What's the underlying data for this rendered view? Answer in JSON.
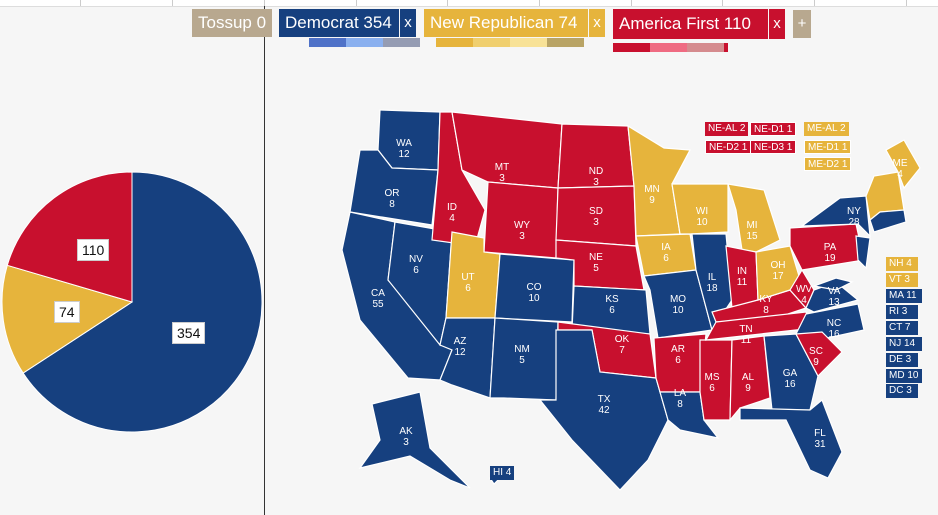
{
  "colors": {
    "dem": "#16407f",
    "rep": "#e6b43c",
    "af": "#c8102e",
    "tossup": "#b8a88f"
  },
  "header": {
    "tossup_label": "Tossup 0",
    "dem_label": "Democrat 354",
    "rep_label": "New Republican 74",
    "af_label": "America First 110",
    "remove_label": "x",
    "add_label": "+"
  },
  "pie": {
    "dem": 354,
    "rep": 74,
    "af": 110,
    "dem_label": "354",
    "rep_label": "74",
    "af_label": "110"
  },
  "states": [
    {
      "abbr": "WA",
      "ev": "12"
    },
    {
      "abbr": "OR",
      "ev": "8"
    },
    {
      "abbr": "CA",
      "ev": "55"
    },
    {
      "abbr": "NV",
      "ev": "6"
    },
    {
      "abbr": "ID",
      "ev": "4"
    },
    {
      "abbr": "MT",
      "ev": "3"
    },
    {
      "abbr": "WY",
      "ev": "3"
    },
    {
      "abbr": "UT",
      "ev": "6"
    },
    {
      "abbr": "AZ",
      "ev": "12"
    },
    {
      "abbr": "CO",
      "ev": "10"
    },
    {
      "abbr": "NM",
      "ev": "5"
    },
    {
      "abbr": "ND",
      "ev": "3"
    },
    {
      "abbr": "SD",
      "ev": "3"
    },
    {
      "abbr": "NE",
      "ev": "5"
    },
    {
      "abbr": "KS",
      "ev": "6"
    },
    {
      "abbr": "OK",
      "ev": "7"
    },
    {
      "abbr": "TX",
      "ev": "42"
    },
    {
      "abbr": "MN",
      "ev": "9"
    },
    {
      "abbr": "IA",
      "ev": "6"
    },
    {
      "abbr": "MO",
      "ev": "10"
    },
    {
      "abbr": "AR",
      "ev": "6"
    },
    {
      "abbr": "LA",
      "ev": "8"
    },
    {
      "abbr": "WI",
      "ev": "10"
    },
    {
      "abbr": "IL",
      "ev": "18"
    },
    {
      "abbr": "MS",
      "ev": "6"
    },
    {
      "abbr": "MI",
      "ev": "15"
    },
    {
      "abbr": "IN",
      "ev": "11"
    },
    {
      "abbr": "KY",
      "ev": "8"
    },
    {
      "abbr": "TN",
      "ev": "11"
    },
    {
      "abbr": "AL",
      "ev": "9"
    },
    {
      "abbr": "GA",
      "ev": "16"
    },
    {
      "abbr": "FL",
      "ev": "31"
    },
    {
      "abbr": "OH",
      "ev": "17"
    },
    {
      "abbr": "WV",
      "ev": "4"
    },
    {
      "abbr": "VA",
      "ev": "13"
    },
    {
      "abbr": "NC",
      "ev": "16"
    },
    {
      "abbr": "SC",
      "ev": "9"
    },
    {
      "abbr": "PA",
      "ev": "19"
    },
    {
      "abbr": "NY",
      "ev": "28"
    },
    {
      "abbr": "ME",
      "ev": "4"
    },
    {
      "abbr": "AK",
      "ev": "3"
    },
    {
      "abbr": "HI",
      "ev": "4"
    }
  ],
  "districts": {
    "ne_al": "NE-AL 2",
    "ne_d1": "NE-D1 1",
    "ne_d2": "NE-D2 1",
    "ne_d3": "NE-D3 1",
    "me_al": "ME-AL 2",
    "me_d1": "ME-D1 1",
    "me_d2": "ME-D2 1"
  },
  "small_states": [
    "NH 4",
    "VT 3",
    "MA 11",
    "RI 3",
    "CT 7",
    "NJ 14",
    "DE 3",
    "MD 10",
    "DC 3"
  ],
  "hi_label": "HI 4"
}
